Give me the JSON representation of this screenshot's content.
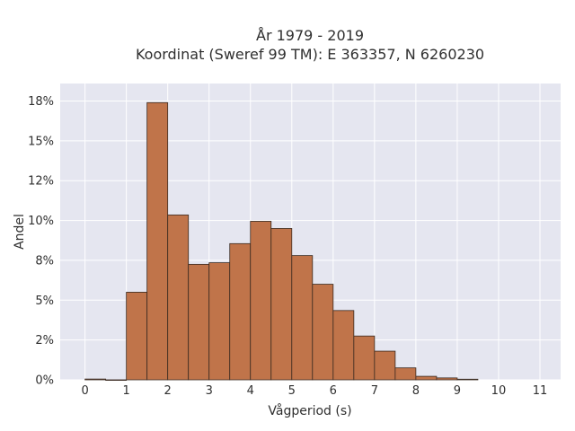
{
  "chart_data": {
    "type": "bar",
    "title_line1": "År 1979 - 2019",
    "title_line2": "Koordinat (Sweref 99 TM): E 363357, N 6260230",
    "xlabel": "Vågperiod (s)",
    "ylabel": "Andel",
    "bin_width": 0.5,
    "bins": [
      {
        "x": 0.0,
        "value": 0.0005
      },
      {
        "x": 0.5,
        "value": 0.0
      },
      {
        "x": 1.0,
        "value": 0.055
      },
      {
        "x": 1.5,
        "value": 0.174
      },
      {
        "x": 2.0,
        "value": 0.1035
      },
      {
        "x": 2.5,
        "value": 0.0725
      },
      {
        "x": 3.0,
        "value": 0.0735
      },
      {
        "x": 3.5,
        "value": 0.0855
      },
      {
        "x": 4.0,
        "value": 0.0995
      },
      {
        "x": 4.5,
        "value": 0.095
      },
      {
        "x": 5.0,
        "value": 0.078
      },
      {
        "x": 5.5,
        "value": 0.06
      },
      {
        "x": 6.0,
        "value": 0.0435
      },
      {
        "x": 6.5,
        "value": 0.0275
      },
      {
        "x": 7.0,
        "value": 0.018
      },
      {
        "x": 7.5,
        "value": 0.0075
      },
      {
        "x": 8.0,
        "value": 0.0022
      },
      {
        "x": 8.5,
        "value": 0.0012
      },
      {
        "x": 9.0,
        "value": 0.0004
      }
    ],
    "xlim": [
      -0.6,
      11.5
    ],
    "ylim": [
      0,
      0.186
    ],
    "xticks": [
      "0",
      "1",
      "2",
      "3",
      "4",
      "5",
      "6",
      "7",
      "8",
      "9",
      "10",
      "11"
    ],
    "yticks": [
      {
        "value": 0.0,
        "label": "0%"
      },
      {
        "value": 0.025,
        "label": "2%"
      },
      {
        "value": 0.05,
        "label": "5%"
      },
      {
        "value": 0.075,
        "label": "8%"
      },
      {
        "value": 0.1,
        "label": "10%"
      },
      {
        "value": 0.125,
        "label": "12%"
      },
      {
        "value": 0.15,
        "label": "15%"
      },
      {
        "value": 0.175,
        "label": "18%"
      }
    ],
    "grid": true,
    "colors": {
      "plot_background": "#e5e6f0",
      "bar_fill": "#c0744a",
      "bar_stroke": "#3a2a20",
      "grid": "#ffffff"
    }
  }
}
